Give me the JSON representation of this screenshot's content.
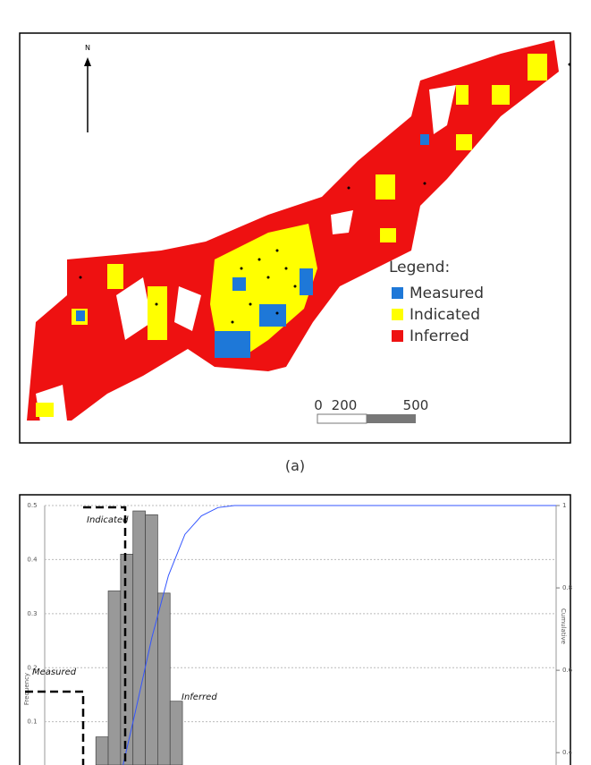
{
  "map": {
    "north": "N",
    "legend": {
      "title": "Legend:",
      "items": [
        {
          "label": "Measured",
          "color": "#1e78d8"
        },
        {
          "label": "Indicated",
          "color": "#ffff00"
        },
        {
          "label": "Inferred",
          "color": "#ee1111"
        }
      ]
    },
    "scale": [
      "0",
      "200",
      "500"
    ],
    "caption": "(a)"
  },
  "chart_data": {
    "type": "histogram",
    "bins": [
      0.62,
      0.77,
      0.92,
      1.07,
      1.22,
      1.37,
      1.52,
      1.67
    ],
    "values": [
      0.072,
      0.342,
      0.41,
      0.49,
      0.483,
      0.338,
      0.138
    ],
    "color": "#999999",
    "xlim": [
      0,
      6.2
    ],
    "ylim": [
      0.02,
      0.5
    ],
    "yticks": [
      0.5,
      0.4,
      0.3,
      0.2,
      0.1
    ],
    "y2lim": [
      0.37,
      1
    ],
    "y2ticks": [
      1,
      0.8,
      0.6,
      0.4
    ],
    "grid": true,
    "ylabel": "Frequency",
    "y2label": "Cumulative",
    "lines": [
      {
        "x": [
          0.95,
          1.1,
          1.3,
          1.5,
          1.7,
          1.9,
          2.1,
          2.3,
          6.2
        ],
        "values": [
          0.37,
          0.5,
          0.68,
          0.83,
          0.93,
          0.975,
          0.995,
          1,
          1
        ],
        "color": "#3355ff",
        "axis": "y2"
      }
    ],
    "annotations": [
      "Measured",
      "Indicated",
      "Inferred"
    ]
  }
}
